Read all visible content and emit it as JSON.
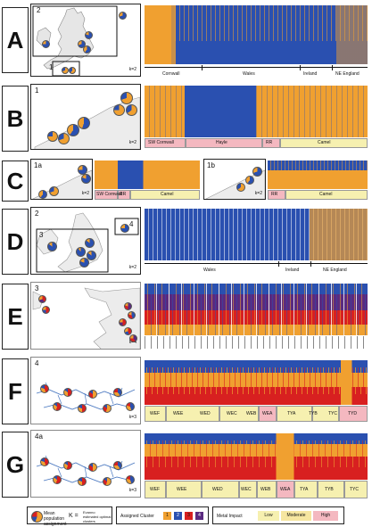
{
  "panels": [
    {
      "letter": "A",
      "map_labels": [
        "2",
        "1"
      ],
      "k": "k=2",
      "regions": [
        "Cornwall",
        "Wales",
        "Ireland",
        "NE England"
      ]
    },
    {
      "letter": "B",
      "map_labels": [
        "1"
      ],
      "k": "k=2",
      "segments": [
        "SW Cornwall",
        "Hayle",
        "RR",
        "Camel"
      ]
    },
    {
      "letter": "C",
      "map_labels": [
        "1a",
        "1b"
      ],
      "k": "k=2",
      "segments_a": [
        "SW Cornwall",
        "RR",
        "Camel"
      ],
      "segments_b": [
        "RR",
        "Camel"
      ]
    },
    {
      "letter": "D",
      "map_labels": [
        "2",
        "3",
        "4"
      ],
      "k": "k=2",
      "regions": [
        "Wales",
        "Ireland",
        "NE England"
      ]
    },
    {
      "letter": "E",
      "map_labels": [
        "3"
      ],
      "k": "k=4"
    },
    {
      "letter": "F",
      "map_labels": [
        "4"
      ],
      "k": "k=3",
      "segments": [
        "WEF",
        "WEE",
        "WED",
        "WEC",
        "WEB",
        "WEA",
        "TYA",
        "TYB",
        "TYC",
        "TYD"
      ]
    },
    {
      "letter": "G",
      "map_labels": [
        "4a"
      ],
      "k": "k=3",
      "segments": [
        "WEF",
        "WEE",
        "WED",
        "WEC",
        "WEB",
        "WEA",
        "TYA",
        "TYB",
        "TYC"
      ]
    }
  ],
  "legend": {
    "pie_caption": "Mean population assignment",
    "k_caption": "Evanno estimated optimal clusters",
    "k_symbol": "K =",
    "cluster_title": "Assigned Cluster",
    "clusters": [
      "1",
      "2",
      "3",
      "4"
    ],
    "metal_title": "Metal Impact",
    "metal_levels": [
      "Low",
      "Moderate",
      "High"
    ]
  },
  "colors": {
    "orange": "#f0a030",
    "blue": "#2a50b0",
    "red": "#d82020",
    "purple": "#5a2a80",
    "low": "#f6f0b0",
    "moderate": "#f6e6a0",
    "high": "#f4b8c0"
  }
}
